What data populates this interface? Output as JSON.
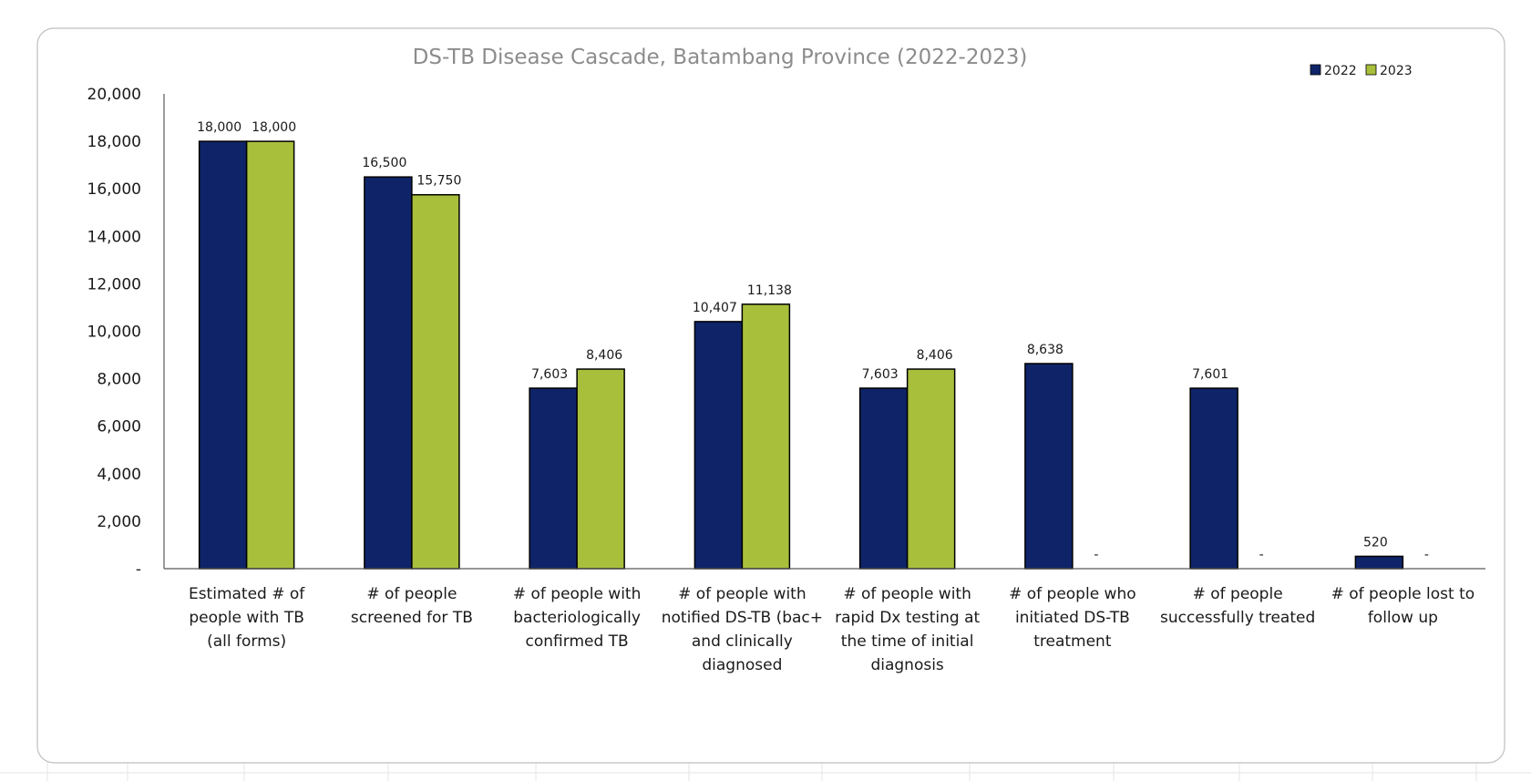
{
  "chart_data": {
    "type": "bar",
    "title": "DS-TB Disease Cascade, Batambang Province (2022-2023)",
    "xlabel": "",
    "ylabel": "",
    "ylim": [
      0,
      20000
    ],
    "y_ticks": [
      0,
      2000,
      4000,
      6000,
      8000,
      10000,
      12000,
      14000,
      16000,
      18000,
      20000
    ],
    "y_tick_labels": [
      "-",
      "2,000",
      "4,000",
      "6,000",
      "8,000",
      "10,000",
      "12,000",
      "14,000",
      "16,000",
      "18,000",
      "20,000"
    ],
    "legend_position": "top-right",
    "grid": false,
    "categories": [
      [
        "Estimated # of",
        "people with TB",
        "(all forms)"
      ],
      [
        "# of people",
        "screened for TB"
      ],
      [
        "# of people with",
        "bacteriologically",
        "confirmed TB"
      ],
      [
        "# of people with",
        "notified DS-TB (bac+",
        "and clinically",
        "diagnosed"
      ],
      [
        "# of people with",
        "rapid Dx testing at",
        "the time of initial",
        "diagnosis"
      ],
      [
        "# of people who",
        "initiated DS-TB",
        "treatment"
      ],
      [
        "# of people",
        "successfully treated"
      ],
      [
        "# of people lost to",
        "follow up"
      ]
    ],
    "series": [
      {
        "name": "2022",
        "color": "#0f2468",
        "values": [
          18000,
          16500,
          7603,
          10407,
          7603,
          8638,
          7601,
          520
        ],
        "labels": [
          "18,000",
          "16,500",
          "7,603",
          "10,407",
          "7,603",
          "8,638",
          "7,601",
          "520"
        ]
      },
      {
        "name": "2023",
        "color": "#a8bf3c",
        "values": [
          18000,
          15750,
          8406,
          11138,
          8406,
          0,
          0,
          0
        ],
        "labels": [
          "18,000",
          "15,750",
          "8,406",
          "11,138",
          "8,406",
          "-",
          "-",
          "-"
        ]
      }
    ]
  }
}
